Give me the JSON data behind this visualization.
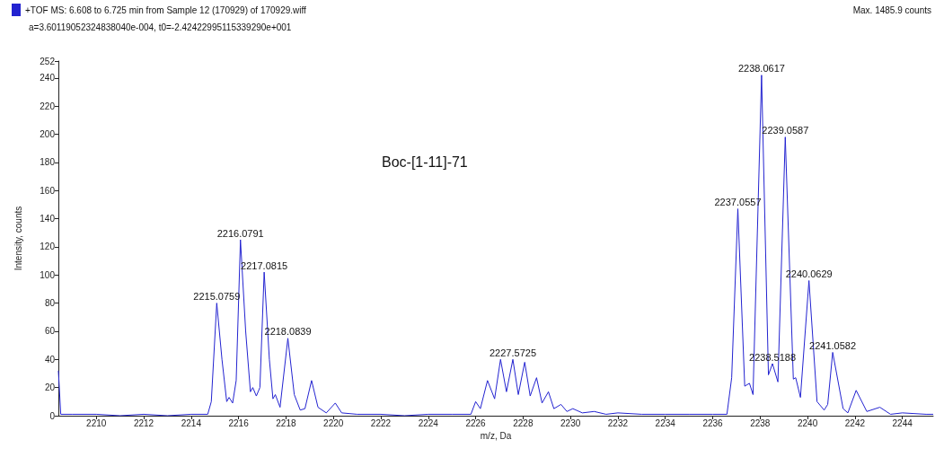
{
  "chart_data": {
    "type": "line",
    "xlabel": "m/z, Da",
    "ylabel": "Intensity, counts",
    "annotations": [
      "a=3.60119052324838040e-004, t0=-2.42422995115339290e+001",
      "Max. 1485.9 counts",
      "Boc-[1-11]-71",
      {
        "text": "2215.0759",
        "x": 2215.08,
        "y": 80
      },
      {
        "text": "2216.0791",
        "x": 2216.08,
        "y": 125
      },
      {
        "text": "2217.0815",
        "x": 2217.08,
        "y": 102
      },
      {
        "text": "2218.0839",
        "x": 2218.08,
        "y": 55
      },
      {
        "text": "2227.5725",
        "x": 2227.57,
        "y": 40
      },
      {
        "text": "2237.0557",
        "x": 2237.06,
        "y": 147
      },
      {
        "text": "2238.0617",
        "x": 2238.06,
        "y": 242
      },
      {
        "text": "2238.5188",
        "x": 2238.52,
        "y": 37
      },
      {
        "text": "2239.0587",
        "x": 2239.06,
        "y": 198
      },
      {
        "text": "2240.0629",
        "x": 2240.06,
        "y": 96
      },
      {
        "text": "2241.0582",
        "x": 2241.06,
        "y": 45
      }
    ],
    "series": [
      {
        "name": "+TOF MS: 6.608 to 6.725 min from Sample 12 (170929) of 170929.wiff",
        "color": "#2323d0",
        "x": [
          2208.4,
          2208.5,
          2209,
          2210,
          2211,
          2212,
          2213,
          2214,
          2214.7,
          2214.85,
          2215.08,
          2215.3,
          2215.5,
          2215.6,
          2215.75,
          2215.9,
          2216.08,
          2216.3,
          2216.5,
          2216.6,
          2216.75,
          2216.9,
          2217.08,
          2217.3,
          2217.45,
          2217.55,
          2217.75,
          2218.08,
          2218.35,
          2218.6,
          2218.8,
          2219.08,
          2219.35,
          2219.7,
          2220.08,
          2220.35,
          2221,
          2222,
          2223,
          2224,
          2225,
          2225.8,
          2226.0,
          2226.2,
          2226.5,
          2226.8,
          2227.05,
          2227.3,
          2227.57,
          2227.8,
          2228.07,
          2228.3,
          2228.57,
          2228.8,
          2229.07,
          2229.3,
          2229.6,
          2229.85,
          2230.1,
          2230.5,
          2231,
          2231.5,
          2232,
          2233,
          2234,
          2235,
          2236,
          2236.6,
          2236.8,
          2237.06,
          2237.35,
          2237.55,
          2237.7,
          2238.06,
          2238.35,
          2238.52,
          2238.75,
          2239.06,
          2239.4,
          2239.5,
          2239.7,
          2240.06,
          2240.4,
          2240.7,
          2240.85,
          2241.06,
          2241.5,
          2241.7,
          2242.05,
          2242.5,
          2243.05,
          2243.5,
          2244,
          2245,
          2245.3
        ],
        "values": [
          32,
          1,
          1,
          1,
          0,
          1,
          0,
          1,
          1,
          10,
          80,
          40,
          10,
          13,
          9,
          25,
          125,
          60,
          17,
          20,
          14,
          20,
          102,
          40,
          12,
          15,
          6,
          55,
          15,
          4,
          5,
          25,
          6,
          2,
          9,
          2,
          1,
          1,
          0,
          1,
          1,
          1,
          10,
          5,
          25,
          12,
          40,
          17,
          40,
          15,
          38,
          14,
          27,
          9,
          17,
          5,
          8,
          3,
          5,
          2,
          3,
          1,
          2,
          1,
          1,
          1,
          1,
          1,
          27,
          147,
          21,
          23,
          15,
          242,
          29,
          37,
          24,
          198,
          26,
          27,
          13,
          96,
          10,
          4,
          8,
          45,
          5,
          2,
          18,
          3,
          6,
          1,
          2,
          1,
          1
        ]
      }
    ],
    "xlim": [
      2208.4,
      2245.3
    ],
    "ylim": [
      0,
      252
    ],
    "xticks": [
      2210,
      2212,
      2214,
      2216,
      2218,
      2220,
      2222,
      2224,
      2226,
      2228,
      2230,
      2232,
      2234,
      2236,
      2238,
      2240,
      2242,
      2244
    ],
    "yticks": [
      0,
      20,
      40,
      60,
      80,
      100,
      120,
      140,
      160,
      180,
      200,
      220,
      240,
      252
    ],
    "legend": "top left",
    "grid": false,
    "marker": "none",
    "line_style": "solid"
  }
}
